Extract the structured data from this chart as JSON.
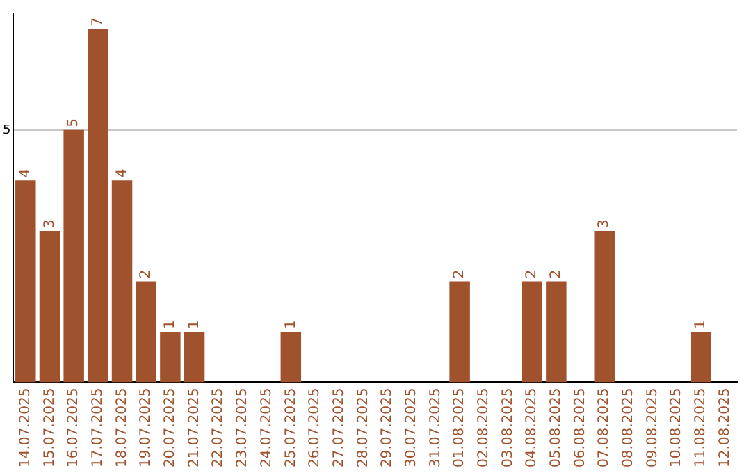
{
  "chart_data": {
    "type": "bar",
    "categories": [
      "14.07.2025",
      "15.07.2025",
      "16.07.2025",
      "17.07.2025",
      "18.07.2025",
      "19.07.2025",
      "20.07.2025",
      "21.07.2025",
      "22.07.2025",
      "23.07.2025",
      "24.07.2025",
      "25.07.2025",
      "26.07.2025",
      "27.07.2025",
      "28.07.2025",
      "29.07.2025",
      "30.07.2025",
      "31.07.2025",
      "01.08.2025",
      "02.08.2025",
      "03.08.2025",
      "04.08.2025",
      "05.08.2025",
      "06.08.2025",
      "07.08.2025",
      "08.08.2025",
      "09.08.2025",
      "10.08.2025",
      "11.08.2025",
      "12.08.2025"
    ],
    "values": [
      4,
      3,
      5,
      7,
      4,
      2,
      1,
      1,
      0,
      0,
      0,
      1,
      0,
      0,
      0,
      0,
      0,
      0,
      2,
      0,
      0,
      2,
      2,
      0,
      3,
      0,
      0,
      0,
      1,
      0
    ],
    "value_labels": [
      "4",
      "3",
      "5",
      "7",
      "4",
      "2",
      "1",
      "1",
      null,
      null,
      null,
      "1",
      null,
      null,
      null,
      null,
      null,
      null,
      "2",
      null,
      null,
      "2",
      "2",
      null,
      "3",
      null,
      null,
      null,
      "1",
      null
    ],
    "color": "#a0522d",
    "ylim": [
      0,
      7.3
    ],
    "yticks": [
      5
    ],
    "grid": "y",
    "legend": false
  }
}
